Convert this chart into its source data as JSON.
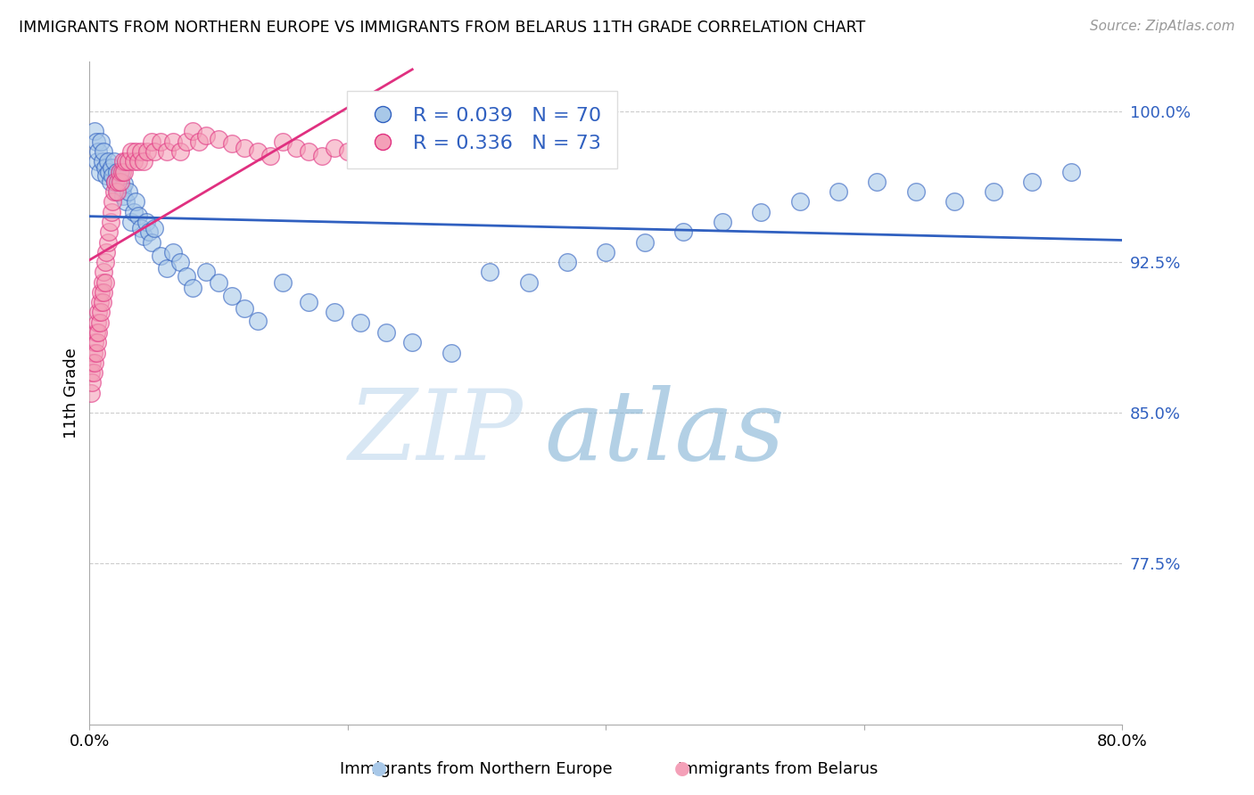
{
  "title": "IMMIGRANTS FROM NORTHERN EUROPE VS IMMIGRANTS FROM BELARUS 11TH GRADE CORRELATION CHART",
  "source": "Source: ZipAtlas.com",
  "ylabel": "11th Grade",
  "blue_label": "Immigrants from Northern Europe",
  "pink_label": "Immigrants from Belarus",
  "blue_R": 0.039,
  "blue_N": 70,
  "pink_R": 0.336,
  "pink_N": 73,
  "blue_color": "#a8c8e8",
  "pink_color": "#f4a0b8",
  "trend_blue": "#3060c0",
  "trend_pink": "#e03080",
  "yticks": [
    0.775,
    0.85,
    0.925,
    1.0
  ],
  "ytick_labels": [
    "77.5%",
    "85.0%",
    "92.5%",
    "100.0%"
  ],
  "xlim": [
    0.0,
    0.8
  ],
  "ylim": [
    0.695,
    1.025
  ],
  "figsize": [
    14.06,
    8.92
  ],
  "dpi": 100,
  "blue_scatter_x": [
    0.004,
    0.005,
    0.006,
    0.007,
    0.008,
    0.009,
    0.01,
    0.011,
    0.012,
    0.013,
    0.014,
    0.015,
    0.016,
    0.017,
    0.018,
    0.019,
    0.02,
    0.021,
    0.022,
    0.023,
    0.024,
    0.025,
    0.026,
    0.027,
    0.028,
    0.03,
    0.032,
    0.034,
    0.036,
    0.038,
    0.04,
    0.042,
    0.044,
    0.046,
    0.048,
    0.05,
    0.055,
    0.06,
    0.065,
    0.07,
    0.075,
    0.08,
    0.09,
    0.1,
    0.11,
    0.12,
    0.13,
    0.15,
    0.17,
    0.19,
    0.21,
    0.23,
    0.25,
    0.28,
    0.31,
    0.34,
    0.37,
    0.4,
    0.43,
    0.46,
    0.49,
    0.52,
    0.55,
    0.58,
    0.61,
    0.64,
    0.67,
    0.7,
    0.73,
    0.76
  ],
  "blue_scatter_y": [
    0.99,
    0.985,
    0.975,
    0.98,
    0.97,
    0.985,
    0.975,
    0.98,
    0.972,
    0.968,
    0.975,
    0.97,
    0.965,
    0.972,
    0.968,
    0.975,
    0.965,
    0.97,
    0.96,
    0.965,
    0.97,
    0.962,
    0.958,
    0.964,
    0.955,
    0.96,
    0.945,
    0.95,
    0.955,
    0.948,
    0.942,
    0.938,
    0.945,
    0.94,
    0.935,
    0.942,
    0.928,
    0.922,
    0.93,
    0.925,
    0.918,
    0.912,
    0.92,
    0.915,
    0.908,
    0.902,
    0.896,
    0.915,
    0.905,
    0.9,
    0.895,
    0.89,
    0.885,
    0.88,
    0.92,
    0.915,
    0.925,
    0.93,
    0.935,
    0.94,
    0.945,
    0.95,
    0.955,
    0.96,
    0.965,
    0.96,
    0.955,
    0.96,
    0.965,
    0.97
  ],
  "pink_scatter_x": [
    0.001,
    0.001,
    0.002,
    0.002,
    0.003,
    0.003,
    0.004,
    0.004,
    0.005,
    0.005,
    0.006,
    0.006,
    0.007,
    0.007,
    0.008,
    0.008,
    0.009,
    0.009,
    0.01,
    0.01,
    0.011,
    0.011,
    0.012,
    0.012,
    0.013,
    0.014,
    0.015,
    0.016,
    0.017,
    0.018,
    0.019,
    0.02,
    0.021,
    0.022,
    0.023,
    0.024,
    0.025,
    0.026,
    0.027,
    0.028,
    0.03,
    0.032,
    0.034,
    0.036,
    0.038,
    0.04,
    0.042,
    0.045,
    0.048,
    0.05,
    0.055,
    0.06,
    0.065,
    0.07,
    0.075,
    0.08,
    0.085,
    0.09,
    0.1,
    0.11,
    0.12,
    0.13,
    0.14,
    0.15,
    0.16,
    0.17,
    0.18,
    0.19,
    0.2,
    0.21,
    0.22,
    0.23,
    0.24
  ],
  "pink_scatter_y": [
    0.87,
    0.86,
    0.875,
    0.865,
    0.88,
    0.87,
    0.885,
    0.875,
    0.89,
    0.88,
    0.895,
    0.885,
    0.9,
    0.89,
    0.905,
    0.895,
    0.91,
    0.9,
    0.915,
    0.905,
    0.92,
    0.91,
    0.925,
    0.915,
    0.93,
    0.935,
    0.94,
    0.945,
    0.95,
    0.955,
    0.96,
    0.965,
    0.96,
    0.965,
    0.97,
    0.965,
    0.97,
    0.975,
    0.97,
    0.975,
    0.975,
    0.98,
    0.975,
    0.98,
    0.975,
    0.98,
    0.975,
    0.98,
    0.985,
    0.98,
    0.985,
    0.98,
    0.985,
    0.98,
    0.985,
    0.99,
    0.985,
    0.988,
    0.986,
    0.984,
    0.982,
    0.98,
    0.978,
    0.985,
    0.982,
    0.98,
    0.978,
    0.982,
    0.98,
    0.978,
    0.976,
    0.98,
    0.978
  ]
}
